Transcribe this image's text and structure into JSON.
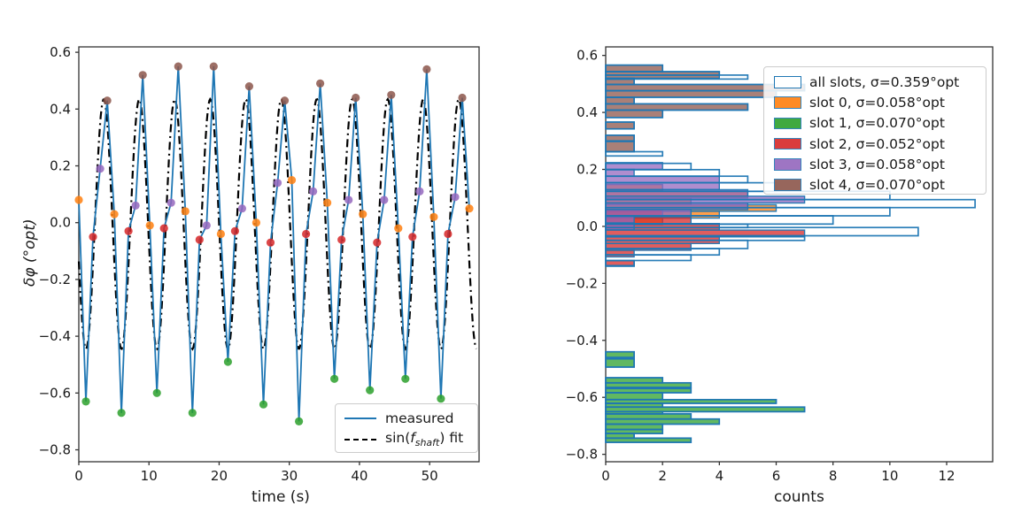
{
  "chart_data": [
    {
      "type": "line",
      "title": "",
      "xlabel": "time (s)",
      "ylabel": "δφ (°opt)",
      "xticks": [
        0,
        10,
        20,
        30,
        40,
        50
      ],
      "yticks": [
        -0.8,
        -0.6,
        -0.4,
        -0.2,
        0.0,
        0.2,
        0.4,
        0.6
      ],
      "xlim": [
        0,
        57.05
      ],
      "ylim": [
        -0.842,
        0.619
      ],
      "grid": false,
      "legend_position": "lower right",
      "legend_measured": "measured",
      "legend_fit": {
        "pre": "sin(",
        "var": "f",
        "sub": "shaft",
        "post": ") fit"
      },
      "sample_interval_s": 1.012,
      "slot_of_sample": "index mod 5",
      "slot_colors": [
        "#ff7f0e",
        "#2ca02c",
        "#d62728",
        "#9467bd",
        "#8c564b"
      ],
      "measured_values": [
        0.08,
        -0.63,
        -0.05,
        0.19,
        0.43,
        0.03,
        -0.67,
        -0.03,
        0.06,
        0.52,
        -0.01,
        -0.6,
        -0.02,
        0.07,
        0.55,
        0.04,
        -0.67,
        -0.06,
        -0.01,
        0.55,
        -0.04,
        -0.49,
        -0.03,
        0.05,
        0.48,
        0.0,
        -0.64,
        -0.07,
        0.14,
        0.43,
        0.15,
        -0.7,
        -0.04,
        0.11,
        0.49,
        0.07,
        -0.55,
        -0.06,
        0.08,
        0.44,
        0.03,
        -0.59,
        -0.07,
        0.08,
        0.45,
        -0.02,
        -0.55,
        -0.05,
        0.11,
        0.54,
        0.02,
        -0.62,
        -0.04,
        0.09,
        0.44,
        0.05
      ],
      "fit": {
        "amplitude": 0.44,
        "period_s": 5.06,
        "phase_t0_s": 2.285,
        "offset": -0.005
      },
      "line_color": "#1f77b4",
      "fit_color": "#000000"
    },
    {
      "type": "bar",
      "orientation": "horizontal",
      "title": "",
      "xlabel": "counts",
      "ylabel": "",
      "xticks": [
        0,
        2,
        4,
        6,
        8,
        10,
        12
      ],
      "yticks": [
        -0.8,
        -0.6,
        -0.4,
        -0.2,
        0.0,
        0.2,
        0.4,
        0.6
      ],
      "xlim": [
        0,
        13.62
      ],
      "ylim": [
        -0.826,
        0.63
      ],
      "grid": false,
      "legend_position": "upper right",
      "legend": [
        {
          "label": "all slots, σ=0.359°opt",
          "series": "all",
          "color": "#1f77b4",
          "filled": false
        },
        {
          "label": "slot 0, σ=0.058°opt",
          "series": "slot0",
          "color": "#ff7f0e",
          "filled": true
        },
        {
          "label": "slot 1, σ=0.070°opt",
          "series": "slot1",
          "color": "#2ca02c",
          "filled": true
        },
        {
          "label": "slot 2, σ=0.052°opt",
          "series": "slot2",
          "color": "#d62728",
          "filled": true
        },
        {
          "label": "slot 3, σ=0.058°opt",
          "series": "slot3",
          "color": "#9467bd",
          "filled": true
        },
        {
          "label": "slot 4, σ=0.070°opt",
          "series": "slot4",
          "color": "#8c564b",
          "filled": true
        }
      ],
      "sigma_opt_deg": {
        "all": 0.359,
        "slot0": 0.058,
        "slot1": 0.07,
        "slot2": 0.052,
        "slot3": 0.058,
        "slot4": 0.07
      },
      "bars_format": "[delta_phi_low, delta_phi_high, count]",
      "histograms": {
        "slot0": [
          [
            0.124,
            0.147,
            2
          ],
          [
            0.1,
            0.124,
            5
          ],
          [
            0.076,
            0.1,
            3
          ],
          [
            0.053,
            0.076,
            6
          ],
          [
            0.029,
            0.053,
            4
          ],
          [
            0.006,
            0.029,
            2
          ]
        ],
        "slot1": [
          [
            -0.46,
            -0.44,
            1
          ],
          [
            -0.494,
            -0.465,
            1
          ],
          [
            -0.549,
            -0.531,
            2
          ],
          [
            -0.565,
            -0.549,
            3
          ],
          [
            -0.584,
            -0.569,
            3
          ],
          [
            -0.608,
            -0.584,
            2
          ],
          [
            -0.621,
            -0.608,
            6
          ],
          [
            -0.634,
            -0.621,
            2
          ],
          [
            -0.65,
            -0.634,
            7
          ],
          [
            -0.658,
            -0.65,
            2
          ],
          [
            -0.676,
            -0.658,
            3
          ],
          [
            -0.694,
            -0.676,
            4
          ],
          [
            -0.713,
            -0.694,
            2
          ],
          [
            -0.727,
            -0.713,
            2
          ],
          [
            -0.743,
            -0.727,
            1
          ],
          [
            -0.758,
            -0.743,
            3
          ]
        ],
        "slot2": [
          [
            0.034,
            0.058,
            2
          ],
          [
            0.01,
            0.034,
            3
          ],
          [
            -0.013,
            0.01,
            4
          ],
          [
            -0.037,
            -0.013,
            7
          ],
          [
            -0.06,
            -0.037,
            4
          ],
          [
            -0.084,
            -0.06,
            3
          ],
          [
            -0.107,
            -0.084,
            1
          ],
          [
            -0.137,
            -0.12,
            1
          ]
        ],
        "slot3": [
          [
            0.2,
            0.224,
            2
          ],
          [
            0.176,
            0.2,
            1
          ],
          [
            0.153,
            0.176,
            4
          ],
          [
            0.129,
            0.153,
            4
          ],
          [
            0.106,
            0.129,
            5
          ],
          [
            0.082,
            0.106,
            7
          ],
          [
            0.059,
            0.082,
            5
          ],
          [
            0.035,
            0.059,
            3
          ],
          [
            0.012,
            0.035,
            1
          ],
          [
            -0.012,
            0.012,
            1
          ]
        ],
        "slot4": [
          [
            0.543,
            0.566,
            2
          ],
          [
            0.52,
            0.543,
            4
          ],
          [
            0.498,
            0.52,
            1
          ],
          [
            0.476,
            0.498,
            7
          ],
          [
            0.453,
            0.476,
            6
          ],
          [
            0.43,
            0.453,
            1
          ],
          [
            0.408,
            0.43,
            5
          ],
          [
            0.382,
            0.408,
            2
          ],
          [
            0.342,
            0.366,
            1
          ],
          [
            0.3,
            0.32,
            1
          ],
          [
            0.262,
            0.298,
            1
          ]
        ],
        "all": [
          [
            0.543,
            0.566,
            2
          ],
          [
            0.531,
            0.543,
            4
          ],
          [
            0.517,
            0.531,
            5
          ],
          [
            0.498,
            0.517,
            1
          ],
          [
            0.476,
            0.498,
            7
          ],
          [
            0.453,
            0.476,
            6
          ],
          [
            0.43,
            0.453,
            1
          ],
          [
            0.408,
            0.43,
            5
          ],
          [
            0.382,
            0.408,
            2
          ],
          [
            0.342,
            0.366,
            1
          ],
          [
            0.3,
            0.32,
            1
          ],
          [
            0.262,
            0.298,
            1
          ],
          [
            0.247,
            0.262,
            2
          ],
          [
            0.199,
            0.221,
            3
          ],
          [
            0.176,
            0.199,
            4
          ],
          [
            0.153,
            0.176,
            5
          ],
          [
            0.123,
            0.153,
            6
          ],
          [
            0.094,
            0.123,
            10
          ],
          [
            0.066,
            0.094,
            13
          ],
          [
            0.037,
            0.066,
            10
          ],
          [
            0.008,
            0.037,
            8
          ],
          [
            -0.004,
            0.008,
            5
          ],
          [
            -0.033,
            -0.004,
            11
          ],
          [
            -0.049,
            -0.033,
            7
          ],
          [
            -0.078,
            -0.049,
            5
          ],
          [
            -0.1,
            -0.078,
            4
          ],
          [
            -0.12,
            -0.1,
            3
          ],
          [
            -0.14,
            -0.12,
            1
          ],
          [
            -0.46,
            -0.44,
            1
          ],
          [
            -0.494,
            -0.465,
            1
          ],
          [
            -0.549,
            -0.531,
            2
          ],
          [
            -0.565,
            -0.549,
            3
          ],
          [
            -0.584,
            -0.569,
            3
          ],
          [
            -0.608,
            -0.584,
            2
          ],
          [
            -0.621,
            -0.608,
            6
          ],
          [
            -0.634,
            -0.621,
            2
          ],
          [
            -0.65,
            -0.634,
            7
          ],
          [
            -0.658,
            -0.65,
            2
          ],
          [
            -0.676,
            -0.658,
            3
          ],
          [
            -0.694,
            -0.676,
            4
          ],
          [
            -0.713,
            -0.694,
            2
          ],
          [
            -0.727,
            -0.713,
            2
          ],
          [
            -0.743,
            -0.727,
            1
          ],
          [
            -0.758,
            -0.743,
            3
          ]
        ]
      },
      "draw_order": [
        "slot0",
        "slot1",
        "slot2",
        "slot3",
        "slot4",
        "all"
      ],
      "fill_alpha": 0.75,
      "edge_color": "#1f77b4"
    }
  ],
  "style": {
    "background": "#ffffff",
    "spine_color": "#333333",
    "tick_color": "#333333"
  }
}
